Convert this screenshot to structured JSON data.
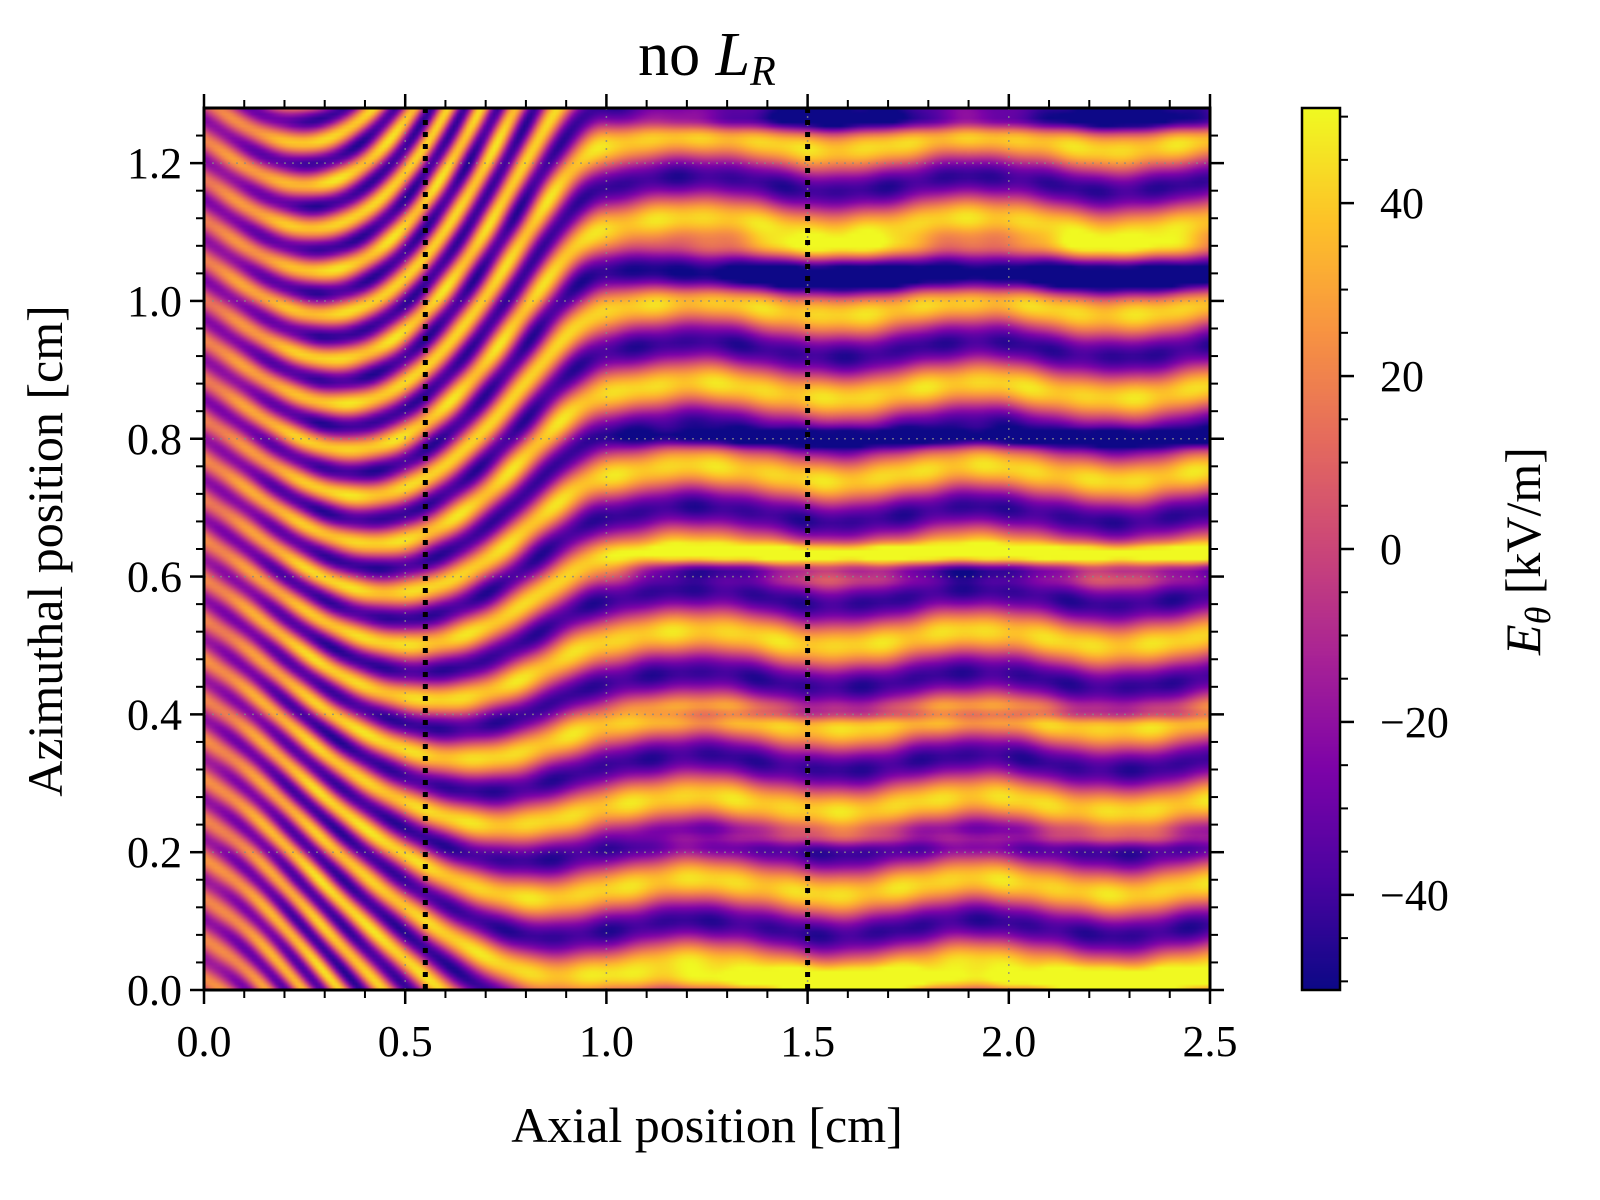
{
  "chart_data": {
    "type": "heatmap",
    "title": {
      "text": "no ",
      "math_main": "L",
      "math_sub": "R"
    },
    "xlabel": "Axial position [cm]",
    "ylabel": "Azimuthal position [cm]",
    "colorbar_label": {
      "main": "E",
      "sub": "θ",
      "rest": " [kV/m]"
    },
    "xlim": [
      0.0,
      2.5
    ],
    "ylim": [
      0.0,
      1.28
    ],
    "clim": [
      -51,
      51
    ],
    "colormap": "plasma",
    "grid": true,
    "xticks": [
      0.0,
      0.5,
      1.0,
      1.5,
      2.0,
      2.5
    ],
    "xtick_labels": [
      "0.0",
      "0.5",
      "1.0",
      "1.5",
      "2.0",
      "2.5"
    ],
    "yticks": [
      0.0,
      0.2,
      0.4,
      0.6,
      0.8,
      1.0,
      1.2
    ],
    "ytick_labels": [
      "0.0",
      "0.2",
      "0.4",
      "0.6",
      "0.8",
      "1.0",
      "1.2"
    ],
    "cbar_ticks": [
      -40,
      -20,
      0,
      20,
      40
    ],
    "cbar_tick_labels": [
      "−40",
      "−20",
      "0",
      "20",
      "40"
    ],
    "vlines": [
      {
        "x": 0.55,
        "style": "dotted",
        "color": "#000000"
      },
      {
        "x": 1.5,
        "style": "dotted",
        "color": "#000000"
      }
    ]
  }
}
